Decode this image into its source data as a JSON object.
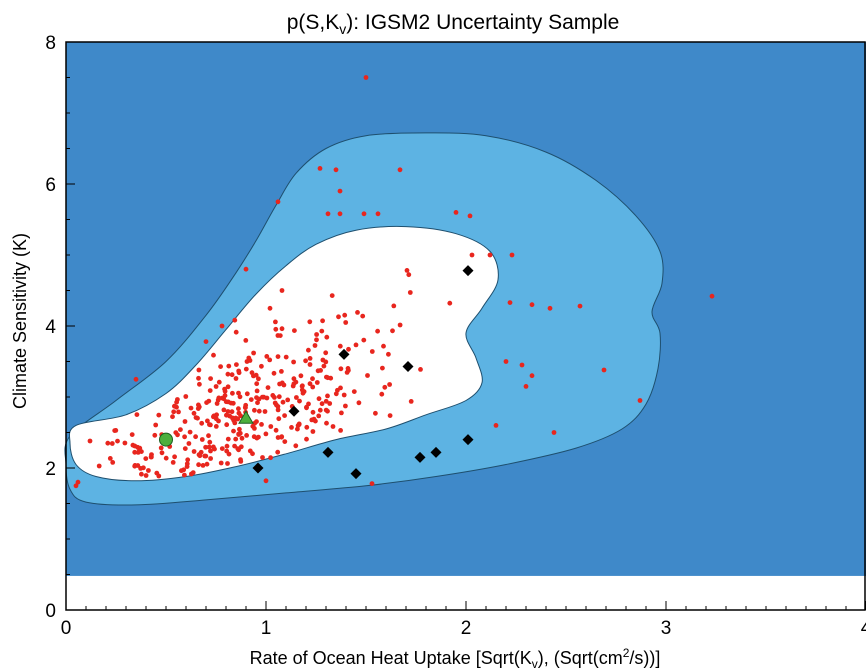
{
  "chart_data": {
    "type": "scatter",
    "title_parts": [
      "p(S,K",
      "v",
      "): IGSM2 Uncertainty Sample"
    ],
    "xlabel_parts": [
      "Rate of Ocean Heat Uptake [Sqrt(K",
      "v",
      "), (Sqrt(cm",
      "2",
      "/s))]"
    ],
    "ylabel": "Climate Sensitivity (K)",
    "xlim": [
      0,
      4
    ],
    "ylim": [
      0,
      8
    ],
    "x_ticks": [
      "0",
      "1",
      "2",
      "3",
      "4"
    ],
    "y_ticks": [
      "0",
      "2",
      "4",
      "6",
      "8"
    ],
    "colors": {
      "background": "#3F89C9",
      "outer_region": "#5DB3E3",
      "inner_region": "#FFFFFF",
      "outline": "#1E4F6E",
      "points": "#E8261E",
      "diamonds": "#000000",
      "green": "#4CAF3D"
    },
    "outer_contour": [
      [
        0.02,
        2.45
      ],
      [
        0.25,
        2.95
      ],
      [
        0.5,
        3.5
      ],
      [
        0.7,
        4.15
      ],
      [
        0.85,
        4.75
      ],
      [
        0.95,
        5.2
      ],
      [
        1.05,
        5.7
      ],
      [
        1.15,
        6.15
      ],
      [
        1.3,
        6.5
      ],
      [
        1.5,
        6.68
      ],
      [
        1.8,
        6.72
      ],
      [
        2.1,
        6.68
      ],
      [
        2.4,
        6.45
      ],
      [
        2.65,
        6.05
      ],
      [
        2.85,
        5.55
      ],
      [
        2.97,
        5.05
      ],
      [
        2.98,
        4.6
      ],
      [
        2.93,
        4.2
      ],
      [
        2.97,
        3.9
      ],
      [
        2.96,
        3.4
      ],
      [
        2.9,
        2.9
      ],
      [
        2.78,
        2.55
      ],
      [
        2.55,
        2.28
      ],
      [
        2.2,
        2.05
      ],
      [
        1.85,
        1.88
      ],
      [
        1.5,
        1.75
      ],
      [
        1.1,
        1.65
      ],
      [
        0.7,
        1.55
      ],
      [
        0.35,
        1.48
      ],
      [
        0.1,
        1.52
      ],
      [
        0.02,
        1.7
      ],
      [
        0.0,
        2.05
      ]
    ],
    "inner_contour": [
      [
        0.05,
        2.6
      ],
      [
        0.3,
        2.75
      ],
      [
        0.5,
        3.05
      ],
      [
        0.65,
        3.45
      ],
      [
        0.8,
        3.95
      ],
      [
        0.95,
        4.45
      ],
      [
        1.1,
        4.85
      ],
      [
        1.25,
        5.15
      ],
      [
        1.45,
        5.35
      ],
      [
        1.7,
        5.4
      ],
      [
        1.95,
        5.3
      ],
      [
        2.12,
        5.05
      ],
      [
        2.16,
        4.65
      ],
      [
        2.08,
        4.25
      ],
      [
        2.0,
        3.9
      ],
      [
        2.05,
        3.55
      ],
      [
        2.08,
        3.2
      ],
      [
        2.0,
        2.95
      ],
      [
        1.8,
        2.75
      ],
      [
        1.6,
        2.55
      ],
      [
        1.35,
        2.4
      ],
      [
        1.1,
        2.2
      ],
      [
        0.85,
        2.02
      ],
      [
        0.6,
        1.88
      ],
      [
        0.35,
        1.82
      ],
      [
        0.15,
        1.88
      ],
      [
        0.05,
        2.05
      ],
      [
        0.02,
        2.35
      ]
    ],
    "diamonds": [
      [
        0.96,
        2.0
      ],
      [
        1.14,
        2.8
      ],
      [
        1.31,
        2.22
      ],
      [
        1.39,
        3.6
      ],
      [
        1.45,
        1.92
      ],
      [
        1.71,
        3.43
      ],
      [
        1.77,
        2.15
      ],
      [
        1.85,
        2.22
      ],
      [
        2.01,
        2.4
      ],
      [
        2.01,
        4.78
      ]
    ],
    "green_circle": [
      0.5,
      2.4
    ],
    "green_triangle": [
      0.9,
      2.7
    ],
    "points_outliers": [
      [
        1.5,
        7.5
      ],
      [
        1.27,
        6.22
      ],
      [
        1.35,
        6.2
      ],
      [
        1.67,
        6.2
      ],
      [
        1.37,
        5.9
      ],
      [
        1.31,
        5.58
      ],
      [
        1.37,
        5.58
      ],
      [
        1.49,
        5.58
      ],
      [
        1.56,
        5.58
      ],
      [
        1.95,
        5.6
      ],
      [
        2.02,
        5.55
      ],
      [
        1.06,
        5.75
      ],
      [
        0.9,
        4.8
      ],
      [
        0.7,
        3.78
      ],
      [
        0.78,
        4.0
      ],
      [
        1.02,
        4.25
      ],
      [
        1.08,
        4.5
      ],
      [
        2.03,
        5.0
      ],
      [
        2.12,
        5.0
      ],
      [
        2.23,
        5.0
      ],
      [
        2.22,
        4.33
      ],
      [
        2.33,
        4.3
      ],
      [
        2.42,
        4.25
      ],
      [
        2.57,
        4.28
      ],
      [
        3.23,
        4.42
      ],
      [
        2.2,
        3.5
      ],
      [
        2.28,
        3.45
      ],
      [
        2.33,
        3.3
      ],
      [
        2.3,
        3.15
      ],
      [
        2.69,
        3.38
      ],
      [
        2.87,
        2.95
      ],
      [
        2.44,
        2.5
      ],
      [
        2.15,
        2.6
      ],
      [
        1.0,
        1.82
      ],
      [
        1.53,
        1.78
      ],
      [
        0.05,
        1.75
      ],
      [
        0.06,
        1.8
      ],
      [
        0.12,
        2.38
      ],
      [
        0.35,
        3.25
      ]
    ],
    "cloud": {
      "seed": 20240611,
      "count": 360,
      "x_range": [
        0.1,
        2.1
      ],
      "y_range": [
        1.8,
        5.35
      ],
      "center": [
        0.85,
        2.7
      ],
      "spread": [
        0.42,
        0.55
      ],
      "slope": 1.35
    }
  }
}
